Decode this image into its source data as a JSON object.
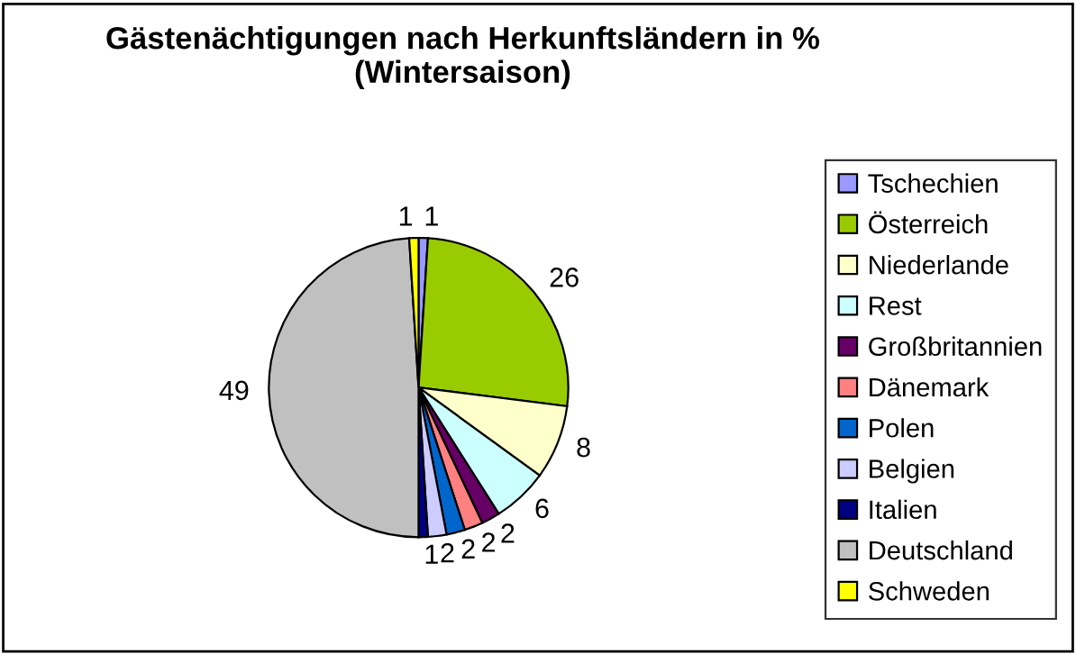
{
  "chart_data": {
    "type": "pie",
    "title": "Gästenächtigungen nach Herkunftsländern in %\n(Wintersaison)",
    "categories": [
      "Tschechien",
      "Österreich",
      "Niederlande",
      "Rest",
      "Großbritannien",
      "Dänemark",
      "Polen",
      "Belgien",
      "Italien",
      "Deutschland",
      "Schweden"
    ],
    "values": [
      1,
      26,
      8,
      6,
      2,
      2,
      2,
      2,
      1,
      49,
      1
    ],
    "colors": [
      "#9999ff",
      "#99cc00",
      "#ffffcc",
      "#ccffff",
      "#660066",
      "#ff8080",
      "#0066cc",
      "#ccccff",
      "#000080",
      "#c0c0c0",
      "#ffff00"
    ],
    "data_labels": true,
    "legend": "right"
  }
}
